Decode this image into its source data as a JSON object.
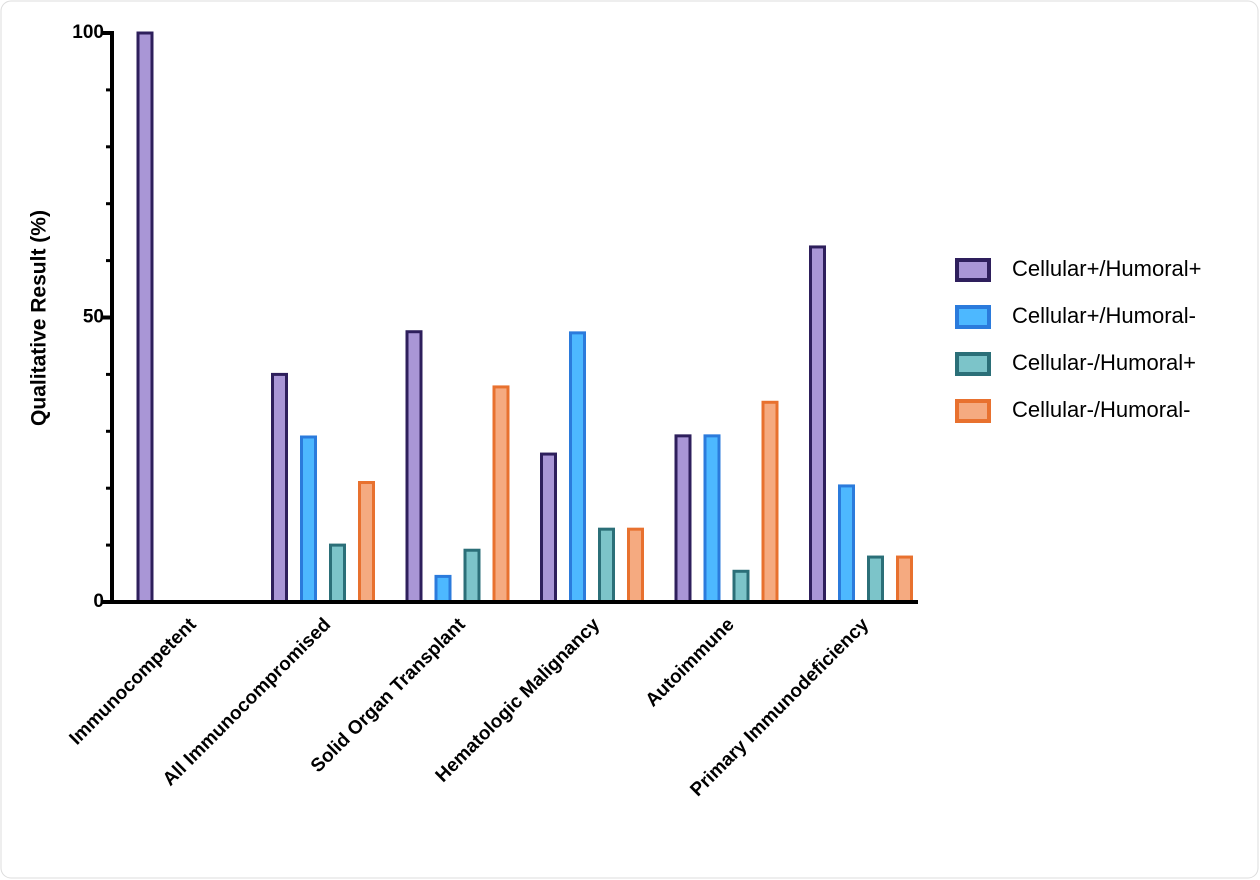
{
  "chart_data": {
    "type": "bar",
    "ylabel": "Qualitative Result (%)",
    "categories": [
      "Immunocompetent",
      "All Immunocompromised",
      "Solid Organ Transplant",
      "Hematologic Malignancy",
      "Autoimmune",
      "Primary Immunodeficiency"
    ],
    "series": [
      {
        "name": "Cellular+/Humoral+",
        "color": "#a996d6",
        "edgecolor": "#2e1f5c",
        "values": [
          100,
          40,
          47.5,
          26,
          29.2,
          62.4
        ]
      },
      {
        "name": "Cellular+/Humoral-",
        "color": "#4db8ff",
        "edgecolor": "#2b7bdc",
        "values": [
          0,
          29,
          4.5,
          47.3,
          29.2,
          20.4
        ]
      },
      {
        "name": "Cellular-/Humoral+",
        "color": "#7cc4c9",
        "edgecolor": "#2b6f78",
        "values": [
          0,
          10,
          9.1,
          12.8,
          5.4,
          7.9
        ]
      },
      {
        "name": "Cellular-/Humoral-",
        "color": "#f5aa80",
        "edgecolor": "#e8712f",
        "values": [
          0,
          21,
          37.8,
          12.8,
          35.1,
          7.9
        ]
      }
    ],
    "ylim": [
      0,
      100
    ],
    "yticks": [
      0,
      50,
      100
    ],
    "minor_yticks": [
      10,
      20,
      30,
      40,
      60,
      70,
      80,
      90
    ],
    "legend": "right",
    "grid": false
  }
}
